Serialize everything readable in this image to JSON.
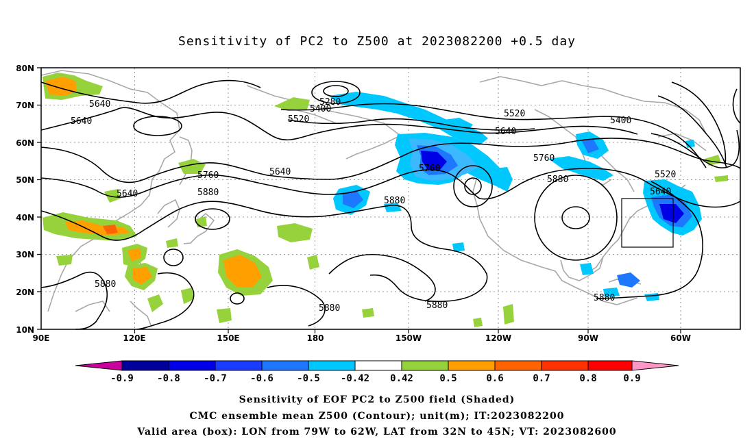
{
  "title": "Sensitivity of PC2 to Z500 at 2023082200 +0.5 day",
  "axes": {
    "lat_ticks": [
      "80N",
      "70N",
      "60N",
      "50N",
      "40N",
      "30N",
      "20N",
      "10N"
    ],
    "lon_ticks": [
      "90E",
      "120E",
      "150E",
      "180",
      "150W",
      "120W",
      "90W",
      "60W"
    ],
    "lon_range": [
      "90E",
      "50W"
    ],
    "lat_range": [
      "10N",
      "80N"
    ],
    "grid": "dotted"
  },
  "colorbar": {
    "labels": [
      "-0.9",
      "-0.8",
      "-0.7",
      "-0.6",
      "-0.5",
      "-0.42",
      "0.42",
      "0.5",
      "0.6",
      "0.7",
      "0.8",
      "0.9"
    ],
    "colors": [
      "#c8009c",
      "#00009a",
      "#0000e6",
      "#1a3cff",
      "#1e78ff",
      "#3cb8ff",
      "#00c8ff",
      "#ffffff",
      "#96d23c",
      "#ff9f00",
      "#ff6400",
      "#ff3200",
      "#ff0000",
      "#ff96c8"
    ]
  },
  "contour_labels": [
    {
      "text": "5640"
    },
    {
      "text": "5640"
    },
    {
      "text": "5640"
    },
    {
      "text": "5640"
    },
    {
      "text": "5280"
    },
    {
      "text": "5400"
    },
    {
      "text": "5520"
    },
    {
      "text": "5520"
    },
    {
      "text": "5640"
    },
    {
      "text": "5400"
    },
    {
      "text": "5760"
    },
    {
      "text": "5760"
    },
    {
      "text": "5760"
    },
    {
      "text": "5880"
    },
    {
      "text": "5880"
    },
    {
      "text": "5880"
    },
    {
      "text": "5520"
    },
    {
      "text": "5640"
    },
    {
      "text": "5880"
    },
    {
      "text": "5880"
    },
    {
      "text": "5880"
    },
    {
      "text": "5880"
    }
  ],
  "valid_box": {
    "lon_from": "79W",
    "lon_to": "62W",
    "lat_from": "32N",
    "lat_to": "45N"
  },
  "captions": [
    "Sensitivity of EOF PC2 to Z500 field (Shaded)",
    "CMC ensemble mean Z500 (Contour); unit(m); IT:2023082200",
    "Valid area (box): LON from 79W to 62W, LAT from 32N to 45N; VT: 2023082600"
  ],
  "colors": {
    "contour": "#000000",
    "coast": "#a8a8a8",
    "grid": "#9a9a9a",
    "box": "#000000"
  }
}
